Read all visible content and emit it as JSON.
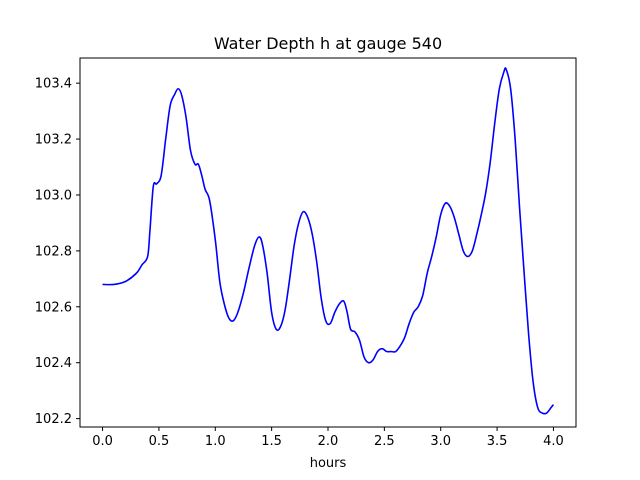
{
  "chart_data": {
    "type": "line",
    "title": "Water Depth h at gauge 540",
    "xlabel": "hours",
    "ylabel": "",
    "xlim": [
      -0.2,
      4.2
    ],
    "ylim": [
      102.17,
      103.49
    ],
    "xticks": [
      0.0,
      0.5,
      1.0,
      1.5,
      2.0,
      2.5,
      3.0,
      3.5,
      4.0
    ],
    "xtick_labels": [
      "0.0",
      "0.5",
      "1.0",
      "1.5",
      "2.0",
      "2.5",
      "3.0",
      "3.5",
      "4.0"
    ],
    "yticks": [
      102.2,
      102.4,
      102.6,
      102.8,
      103.0,
      103.2,
      103.4
    ],
    "ytick_labels": [
      "102.2",
      "102.4",
      "102.6",
      "102.8",
      "103.0",
      "103.2",
      "103.4"
    ],
    "grid": false,
    "series": [
      {
        "color": "#0000ff",
        "x": [
          0.0,
          0.1,
          0.2,
          0.3,
          0.35,
          0.4,
          0.42,
          0.45,
          0.48,
          0.52,
          0.56,
          0.6,
          0.64,
          0.67,
          0.7,
          0.74,
          0.78,
          0.82,
          0.85,
          0.88,
          0.91,
          0.95,
          1.0,
          1.04,
          1.08,
          1.12,
          1.16,
          1.2,
          1.25,
          1.3,
          1.35,
          1.39,
          1.42,
          1.46,
          1.5,
          1.54,
          1.58,
          1.62,
          1.66,
          1.7,
          1.74,
          1.78,
          1.82,
          1.86,
          1.9,
          1.94,
          1.98,
          2.02,
          2.06,
          2.1,
          2.14,
          2.17,
          2.2,
          2.24,
          2.28,
          2.32,
          2.36,
          2.4,
          2.44,
          2.48,
          2.52,
          2.56,
          2.6,
          2.64,
          2.68,
          2.72,
          2.76,
          2.8,
          2.84,
          2.88,
          2.92,
          2.96,
          3.0,
          3.04,
          3.08,
          3.12,
          3.16,
          3.2,
          3.24,
          3.28,
          3.32,
          3.36,
          3.4,
          3.44,
          3.48,
          3.52,
          3.56,
          3.58,
          3.62,
          3.66,
          3.7,
          3.74,
          3.78,
          3.82,
          3.86,
          3.9,
          3.94,
          3.98,
          4.0
        ],
        "y": [
          102.68,
          102.68,
          102.69,
          102.72,
          102.75,
          102.78,
          102.87,
          103.03,
          103.04,
          103.07,
          103.2,
          103.32,
          103.36,
          103.38,
          103.36,
          103.28,
          103.16,
          103.11,
          103.11,
          103.07,
          103.02,
          102.98,
          102.84,
          102.69,
          102.61,
          102.56,
          102.55,
          102.58,
          102.65,
          102.74,
          102.82,
          102.85,
          102.82,
          102.72,
          102.58,
          102.52,
          102.53,
          102.59,
          102.7,
          102.82,
          102.9,
          102.94,
          102.92,
          102.86,
          102.76,
          102.63,
          102.55,
          102.54,
          102.58,
          102.61,
          102.62,
          102.58,
          102.52,
          102.51,
          102.48,
          102.42,
          102.4,
          102.41,
          102.44,
          102.45,
          102.44,
          102.44,
          102.44,
          102.46,
          102.49,
          102.54,
          102.58,
          102.6,
          102.64,
          102.72,
          102.78,
          102.85,
          102.93,
          102.97,
          102.96,
          102.92,
          102.86,
          102.8,
          102.78,
          102.8,
          102.86,
          102.93,
          103.01,
          103.12,
          103.26,
          103.38,
          103.44,
          103.45,
          103.38,
          103.2,
          102.95,
          102.72,
          102.5,
          102.33,
          102.24,
          102.22,
          102.22,
          102.24,
          102.25
        ]
      }
    ]
  }
}
